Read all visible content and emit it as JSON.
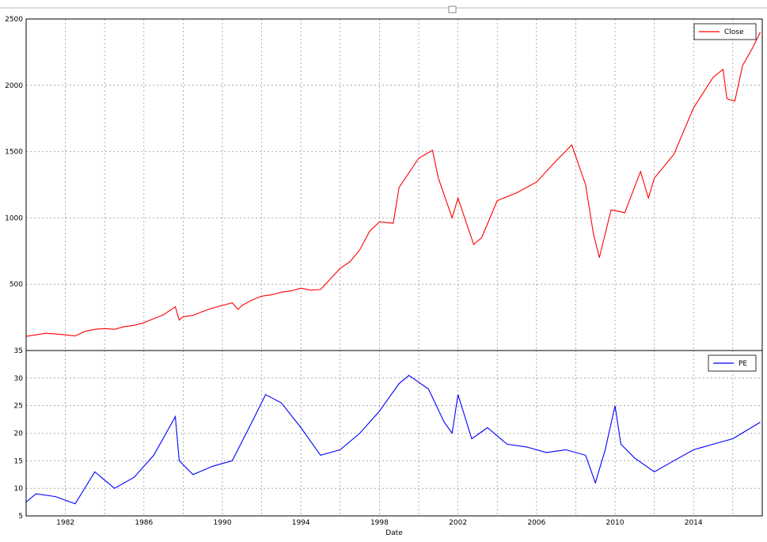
{
  "chart_data": [
    {
      "type": "line",
      "x": [
        1980.0,
        1980.5,
        1981.0,
        1981.5,
        1982.0,
        1982.5,
        1983.0,
        1983.5,
        1984.0,
        1984.5,
        1985.0,
        1985.5,
        1986.0,
        1986.5,
        1987.0,
        1987.6,
        1987.8,
        1988.0,
        1988.5,
        1989.0,
        1989.5,
        1990.0,
        1990.5,
        1990.8,
        1991.0,
        1991.5,
        1992.0,
        1992.5,
        1993.0,
        1993.5,
        1994.0,
        1994.5,
        1995.0,
        1995.5,
        1996.0,
        1996.5,
        1997.0,
        1997.5,
        1998.0,
        1998.7,
        1999.0,
        1999.5,
        2000.0,
        2000.7,
        2001.0,
        2001.7,
        2002.0,
        2002.8,
        2003.2,
        2004.0,
        2005.0,
        2006.0,
        2007.0,
        2007.8,
        2008.5,
        2008.9,
        2009.2,
        2009.8,
        2010.5,
        2011.3,
        2011.7,
        2012.0,
        2013.0,
        2014.0,
        2015.0,
        2015.5,
        2015.7,
        2016.1,
        2016.5,
        2017.0,
        2017.4
      ],
      "series": [
        {
          "name": "Close",
          "color": "#ff0000",
          "values": [
            107,
            118,
            130,
            125,
            118,
            110,
            145,
            160,
            165,
            160,
            180,
            190,
            210,
            240,
            270,
            330,
            230,
            255,
            265,
            295,
            320,
            340,
            360,
            310,
            340,
            380,
            410,
            420,
            440,
            450,
            470,
            455,
            460,
            540,
            620,
            670,
            760,
            900,
            970,
            960,
            1230,
            1340,
            1450,
            1510,
            1300,
            1000,
            1150,
            800,
            850,
            1130,
            1190,
            1270,
            1430,
            1550,
            1250,
            880,
            700,
            1060,
            1040,
            1350,
            1150,
            1300,
            1480,
            1830,
            2060,
            2120,
            1900,
            1880,
            2150,
            2280,
            2400
          ]
        }
      ],
      "xlim": [
        1980,
        2017.5
      ],
      "ylim": [
        0,
        2500
      ],
      "yticks": [
        500,
        1000,
        1500,
        2000,
        2500
      ],
      "grid": true,
      "legend": "upper-right"
    },
    {
      "type": "line",
      "x": [
        1980.0,
        1980.5,
        1981.5,
        1982.5,
        1983.5,
        1984.5,
        1985.5,
        1986.5,
        1987.6,
        1987.8,
        1988.5,
        1989.5,
        1990.5,
        1991.5,
        1992.2,
        1993.0,
        1994.0,
        1995.0,
        1996.0,
        1997.0,
        1998.0,
        1999.0,
        1999.5,
        2000.5,
        2001.3,
        2001.7,
        2002.0,
        2002.7,
        2003.5,
        2004.5,
        2005.5,
        2006.5,
        2007.5,
        2008.5,
        2009.0,
        2009.5,
        2010.0,
        2010.3,
        2011.0,
        2012.0,
        2013.0,
        2014.0,
        2015.0,
        2016.0,
        2017.4
      ],
      "series": [
        {
          "name": "PE",
          "color": "#0000ff",
          "values": [
            7.5,
            9,
            8.5,
            7.2,
            13,
            10,
            12,
            16,
            23,
            15,
            12.5,
            14,
            15,
            22,
            27,
            25.5,
            21,
            16,
            17,
            20,
            24,
            29,
            30.5,
            28,
            22,
            20,
            27,
            19,
            21,
            18,
            17.5,
            16.5,
            17,
            16,
            11,
            17,
            25,
            18,
            15.5,
            13,
            15,
            17,
            18,
            19,
            22
          ]
        }
      ],
      "xlim": [
        1980,
        2017.5
      ],
      "ylim": [
        5,
        35
      ],
      "yticks": [
        5,
        10,
        15,
        20,
        25,
        30,
        35
      ],
      "xticks": [
        1982,
        1986,
        1990,
        1994,
        1998,
        2002,
        2006,
        2010,
        2014
      ],
      "xminorticks": [
        1984,
        1988,
        1992,
        1996,
        2000,
        2004,
        2008,
        2012,
        2016
      ],
      "xlabel": "Date",
      "grid": true,
      "legend": "upper-right"
    }
  ]
}
